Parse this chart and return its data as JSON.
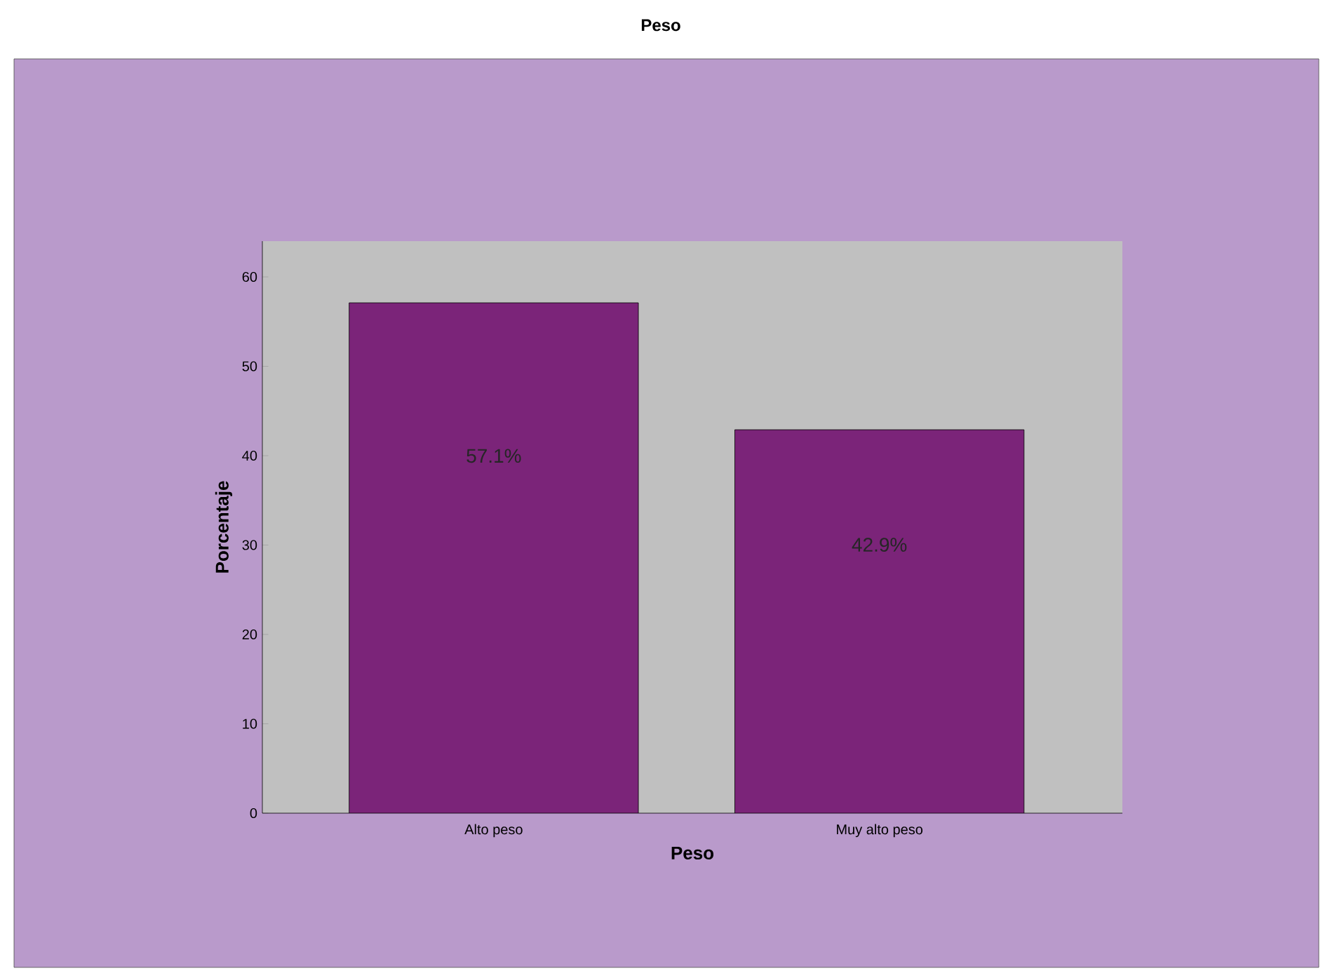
{
  "chart_data": {
    "type": "bar",
    "title": "Peso",
    "xlabel": "Peso",
    "ylabel": "Porcentaje",
    "categories": [
      "Alto peso",
      "Muy alto peso"
    ],
    "values": [
      57.1,
      42.9
    ],
    "value_labels": [
      "57.1%",
      "42.9%"
    ],
    "color": "#7b2479",
    "ylim": [
      0,
      64
    ],
    "yticks": [
      0,
      10,
      20,
      30,
      40,
      50,
      60
    ],
    "grid": false
  }
}
